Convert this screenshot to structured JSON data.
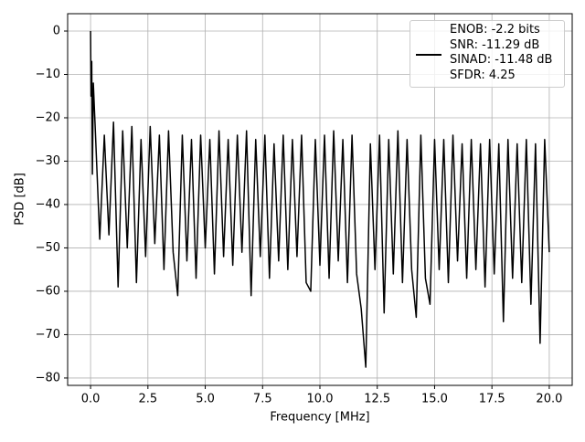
{
  "chart_data": {
    "type": "line",
    "xlabel": "Frequency [MHz]",
    "ylabel": "PSD [dB]",
    "x": [
      0,
      0.02,
      0.05,
      0.08,
      0.12,
      0.2,
      0.4,
      0.6,
      0.8,
      1.0,
      1.2,
      1.4,
      1.6,
      1.8,
      2.0,
      2.2,
      2.4,
      2.6,
      2.8,
      3.0,
      3.2,
      3.4,
      3.6,
      3.8,
      4.0,
      4.2,
      4.4,
      4.6,
      4.8,
      5.0,
      5.2,
      5.4,
      5.6,
      5.8,
      6.0,
      6.2,
      6.4,
      6.6,
      6.8,
      7.0,
      7.2,
      7.4,
      7.6,
      7.8,
      8.0,
      8.2,
      8.4,
      8.6,
      8.8,
      9.0,
      9.2,
      9.4,
      9.6,
      9.8,
      10.0,
      10.2,
      10.4,
      10.6,
      10.8,
      11.0,
      11.2,
      11.4,
      11.6,
      11.8,
      12.0,
      12.2,
      12.4,
      12.6,
      12.8,
      13.0,
      13.2,
      13.4,
      13.6,
      13.8,
      14.0,
      14.2,
      14.4,
      14.6,
      14.8,
      15.0,
      15.2,
      15.4,
      15.6,
      15.8,
      16.0,
      16.2,
      16.4,
      16.6,
      16.8,
      17.0,
      17.2,
      17.4,
      17.6,
      17.8,
      18.0,
      18.2,
      18.4,
      18.6,
      18.8,
      19.0,
      19.2,
      19.4,
      19.6,
      19.8,
      20.0
    ],
    "series": [
      {
        "name": "ENOB: -2.2 bits\nSNR: -11.29 dB\nSINAD: -11.48 dB\nSFDR: 4.25",
        "color": "#000000",
        "values": [
          0,
          -15,
          -7,
          -33,
          -12,
          -22,
          -48,
          -24,
          -47,
          -21,
          -59,
          -23,
          -50,
          -22,
          -58,
          -25,
          -52,
          -22,
          -49,
          -24,
          -55,
          -23,
          -51,
          -61,
          -24,
          -53,
          -25,
          -57,
          -24,
          -50,
          -25,
          -56,
          -23,
          -52,
          -25,
          -54,
          -24,
          -51,
          -23,
          -61,
          -25,
          -52,
          -24,
          -57,
          -26,
          -53,
          -24,
          -55,
          -25,
          -52,
          -24,
          -58,
          -60,
          -25,
          -54,
          -24,
          -57,
          -23,
          -53,
          -25,
          -58,
          -24,
          -56,
          -64,
          -77.5,
          -26,
          -55,
          -24,
          -65,
          -25,
          -56,
          -23,
          -58,
          -25,
          -55,
          -66,
          -24,
          -57,
          -63,
          -25,
          -55,
          -25,
          -58,
          -24,
          -53,
          -26,
          -57,
          -25,
          -55,
          -26,
          -59,
          -25,
          -56,
          -26,
          -67,
          -25,
          -57,
          -26,
          -58,
          -25,
          -63,
          -26,
          -72,
          -25,
          -51
        ]
      }
    ],
    "xlim": [
      -1,
      21
    ],
    "ylim": [
      -81.7,
      4
    ],
    "xticks": [
      {
        "value": 0,
        "label": "0.0"
      },
      2.5,
      {
        "value": 5,
        "label": "5.0"
      },
      7.5,
      {
        "value": 10,
        "label": "10.0"
      },
      12.5,
      {
        "value": 15,
        "label": "15.0"
      },
      17.5,
      {
        "value": 20,
        "label": "20.0"
      }
    ],
    "yticks": [
      0,
      {
        "value": -10,
        "label": "−10"
      },
      {
        "value": -20,
        "label": "−20"
      },
      {
        "value": -30,
        "label": "−30"
      },
      {
        "value": -40,
        "label": "−40"
      },
      {
        "value": -50,
        "label": "−50"
      },
      {
        "value": -60,
        "label": "−60"
      },
      {
        "value": -70,
        "label": "−70"
      },
      {
        "value": -80,
        "label": "−80"
      }
    ],
    "grid": true,
    "legend": "upper right"
  }
}
